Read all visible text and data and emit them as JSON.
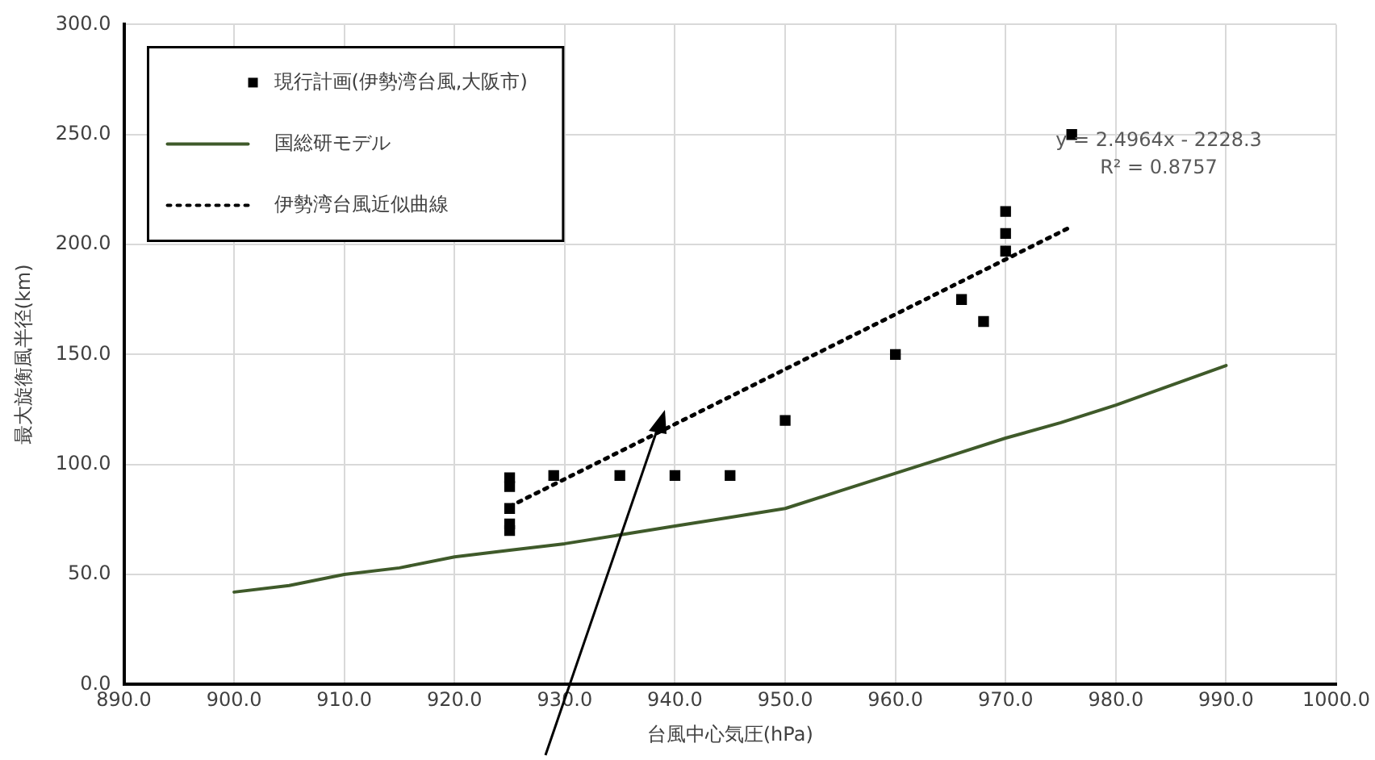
{
  "chart_data": {
    "type": "scatter",
    "xlabel": "台風中心気圧(hPa)",
    "ylabel": "最大旋衡風半径(km)",
    "xlim": [
      890,
      1000
    ],
    "xticks": [
      {
        "value": 890,
        "label": "890.0"
      },
      {
        "value": 900,
        "label": "900.0"
      },
      {
        "value": 910,
        "label": "910.0"
      },
      {
        "value": 920,
        "label": "920.0"
      },
      {
        "value": 930,
        "label": "930.0"
      },
      {
        "value": 940,
        "label": "940.0"
      },
      {
        "value": 950,
        "label": "950.0"
      },
      {
        "value": 960,
        "label": "960.0"
      },
      {
        "value": 970,
        "label": "970.0"
      },
      {
        "value": 980,
        "label": "980.0"
      },
      {
        "value": 990,
        "label": "990.0"
      },
      {
        "value": 1000,
        "label": "1000.0"
      }
    ],
    "ylim": [
      0,
      300
    ],
    "yticks": [
      {
        "value": 0,
        "label": "0.0"
      },
      {
        "value": 50,
        "label": "50.0"
      },
      {
        "value": 100,
        "label": "100.0"
      },
      {
        "value": 150,
        "label": "150.0"
      },
      {
        "value": 200,
        "label": "200.0"
      },
      {
        "value": 250,
        "label": "250.0"
      },
      {
        "value": 300,
        "label": "300.0"
      }
    ],
    "grid": true,
    "legend": "top left",
    "series": [
      {
        "name": "現行計画(伊勢湾台風,大阪市)",
        "marker": "square",
        "color": "#000000",
        "x": [
          925,
          925,
          925,
          925,
          925,
          929,
          935,
          940,
          945,
          950,
          960,
          966,
          968,
          970,
          970,
          970,
          976
        ],
        "values": [
          94,
          90,
          80,
          73,
          70,
          95,
          95,
          95,
          95,
          120,
          150,
          175,
          165,
          215,
          205,
          197,
          250
        ]
      },
      {
        "name": "国総研モデル",
        "type": "line",
        "marker": "none",
        "line_style": "solid",
        "color": "#3f5a2a",
        "x": [
          900,
          905,
          910,
          915,
          920,
          925,
          930,
          935,
          940,
          945,
          950,
          955,
          960,
          965,
          970,
          975,
          980,
          985,
          990
        ],
        "values": [
          42,
          45,
          50,
          53,
          58,
          61,
          64,
          68,
          72,
          76,
          80,
          88,
          96,
          104,
          112,
          119,
          127,
          136,
          145
        ]
      },
      {
        "name": "伊勢湾台風近似曲線",
        "type": "line",
        "marker": "none",
        "line_style": "dotted",
        "color": "#000000",
        "x": [
          925,
          976
        ],
        "values": [
          80.9,
          208.2
        ]
      }
    ],
    "annotations": [
      "y = 2.4964x - 2228.3",
      "R² = 0.8757"
    ]
  }
}
